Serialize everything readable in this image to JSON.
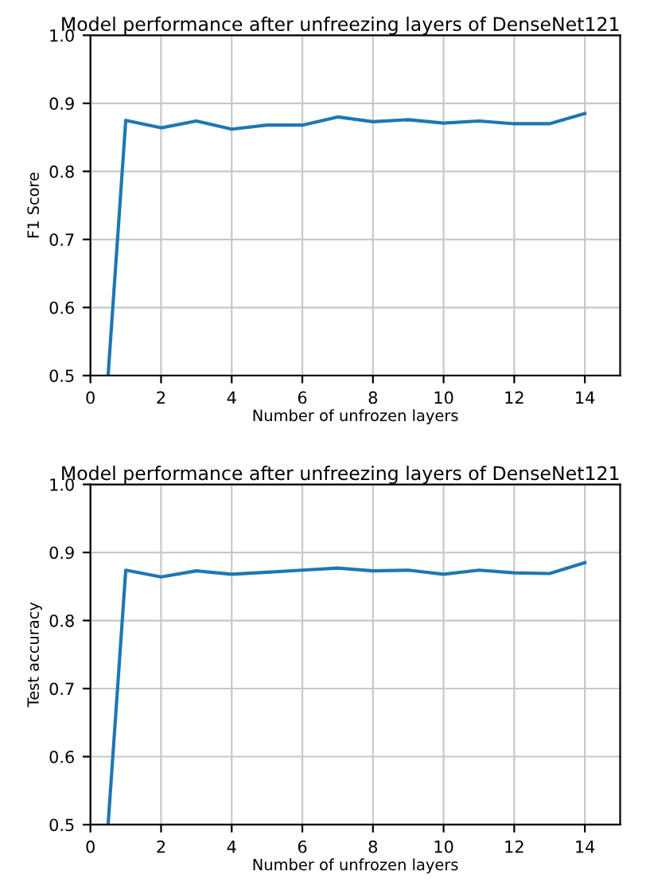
{
  "chart_data": [
    {
      "type": "line",
      "title": "Model performance after unfreezing layers of DenseNet121",
      "xlabel": "Number of unfrozen layers",
      "ylabel": "F1 Score",
      "x": [
        0.5,
        1,
        2,
        3,
        4,
        5,
        6,
        7,
        8,
        9,
        10,
        11,
        12,
        13,
        14
      ],
      "series": [
        {
          "color": "#1f77b4",
          "values": [
            0.5,
            0.875,
            0.864,
            0.874,
            0.862,
            0.868,
            0.868,
            0.88,
            0.873,
            0.876,
            0.871,
            0.874,
            0.87,
            0.87,
            0.885
          ]
        }
      ],
      "xlim": [
        0,
        15
      ],
      "ylim": [
        0.5,
        1.0
      ],
      "xticks": [
        0,
        2,
        4,
        6,
        8,
        10,
        12,
        14
      ],
      "yticks": [
        0.5,
        0.6,
        0.7,
        0.8,
        0.9,
        {
          "value": 1.0,
          "label": "1.0"
        }
      ],
      "grid": true
    },
    {
      "type": "line",
      "title": "Model performance after unfreezing layers of DenseNet121",
      "xlabel": "Number of unfrozen layers",
      "ylabel": "Test accuracy",
      "x": [
        0.5,
        1,
        2,
        3,
        4,
        5,
        6,
        7,
        8,
        9,
        10,
        11,
        12,
        13,
        14
      ],
      "series": [
        {
          "color": "#1f77b4",
          "values": [
            0.5,
            0.874,
            0.864,
            0.873,
            0.868,
            0.871,
            0.874,
            0.877,
            0.873,
            0.874,
            0.868,
            0.874,
            0.87,
            0.869,
            0.885
          ]
        }
      ],
      "xlim": [
        0,
        15
      ],
      "ylim": [
        0.5,
        1.0
      ],
      "xticks": [
        0,
        2,
        4,
        6,
        8,
        10,
        12,
        14
      ],
      "yticks": [
        0.5,
        0.6,
        0.7,
        0.8,
        0.9,
        {
          "value": 1.0,
          "label": "1.0"
        }
      ],
      "grid": true
    }
  ]
}
